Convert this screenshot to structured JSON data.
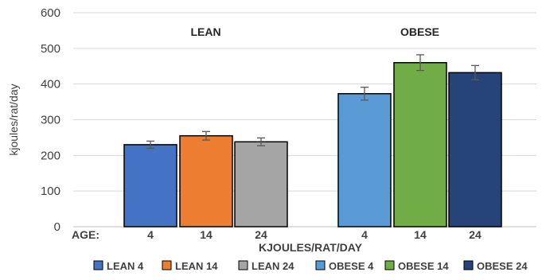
{
  "chart_data": {
    "type": "bar",
    "ylabel": "kjoules/rat/day",
    "xlabel": "KJOULES/RAT/DAY",
    "x_prefix_label": "AGE:",
    "ylim": [
      0,
      600
    ],
    "yticks": [
      0,
      100,
      200,
      300,
      400,
      500,
      600
    ],
    "grid": true,
    "legend_position": "bottom",
    "groups": [
      {
        "label": "LEAN",
        "members": [
          0,
          1,
          2
        ]
      },
      {
        "label": "OBESE",
        "members": [
          3,
          4,
          5
        ]
      }
    ],
    "series": [
      {
        "name": "LEAN 4",
        "category": "4",
        "value": 230,
        "error": 10,
        "color": "#4472C4"
      },
      {
        "name": "LEAN 14",
        "category": "14",
        "value": 255,
        "error": 12,
        "color": "#ED7D31"
      },
      {
        "name": "LEAN 24",
        "category": "24",
        "value": 238,
        "error": 11,
        "color": "#A5A5A5"
      },
      {
        "name": "OBESE 4",
        "category": "4",
        "value": 373,
        "error": 18,
        "color": "#5B9BD5"
      },
      {
        "name": "OBESE 14",
        "category": "14",
        "value": 460,
        "error": 22,
        "color": "#70AD47"
      },
      {
        "name": "OBESE 24",
        "category": "24",
        "value": 432,
        "error": 20,
        "color": "#264478"
      }
    ]
  }
}
